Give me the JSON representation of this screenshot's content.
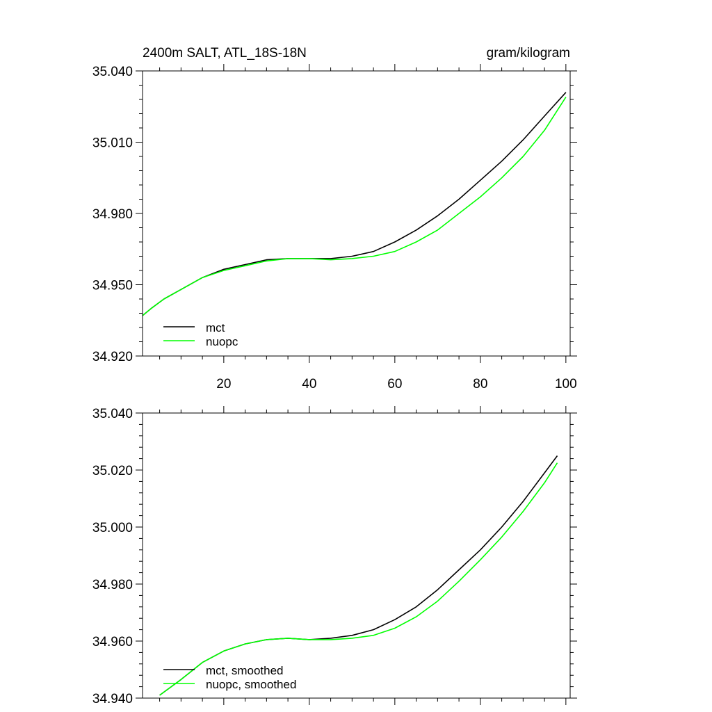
{
  "chart_data": [
    {
      "type": "line",
      "title": "2400m SALT, ATL_18S-18N",
      "units": "gram/kilogram",
      "xlim": [
        1,
        101
      ],
      "ylim": [
        34.92,
        35.04
      ],
      "xticks": [
        20,
        40,
        60,
        80,
        100
      ],
      "yticks": [
        34.92,
        34.95,
        34.98,
        35.01,
        35.04
      ],
      "ytick_labels": [
        "34.920",
        "34.950",
        "34.980",
        "35.010",
        "35.040"
      ],
      "xtick_labels": [
        "20",
        "40",
        "60",
        "80",
        "100"
      ],
      "legend_position": "bottom-left",
      "series": [
        {
          "name": "mct",
          "color": "#000000",
          "x": [
            1,
            3,
            6,
            10,
            15,
            20,
            25,
            30,
            35,
            40,
            45,
            50,
            55,
            60,
            65,
            70,
            75,
            80,
            85,
            90,
            95,
            100
          ],
          "y": [
            34.937,
            34.94,
            34.944,
            34.948,
            34.953,
            34.9565,
            34.9585,
            34.9605,
            34.961,
            34.961,
            34.961,
            34.962,
            34.964,
            34.968,
            34.973,
            34.979,
            34.986,
            34.994,
            35.002,
            35.011,
            35.021,
            35.031
          ]
        },
        {
          "name": "nuopc",
          "color": "#00ff00",
          "x": [
            1,
            3,
            6,
            10,
            15,
            20,
            25,
            30,
            35,
            40,
            45,
            50,
            55,
            60,
            65,
            70,
            75,
            80,
            85,
            90,
            95,
            100
          ],
          "y": [
            34.937,
            34.94,
            34.944,
            34.948,
            34.953,
            34.956,
            34.958,
            34.96,
            34.961,
            34.961,
            34.9605,
            34.961,
            34.962,
            34.964,
            34.968,
            34.973,
            34.98,
            34.987,
            34.995,
            35.004,
            35.015,
            35.029
          ]
        }
      ]
    },
    {
      "type": "line",
      "title": "",
      "xlim": [
        1,
        101
      ],
      "ylim": [
        34.94,
        35.04
      ],
      "xticks": [
        20,
        40,
        60,
        80,
        100
      ],
      "yticks": [
        34.94,
        34.96,
        34.98,
        35.0,
        35.02,
        35.04
      ],
      "ytick_labels": [
        "34.940",
        "34.960",
        "34.980",
        "35.000",
        "35.020",
        "35.040"
      ],
      "legend_position": "bottom-left",
      "series": [
        {
          "name": "mct, smoothed",
          "color": "#000000",
          "x": [
            5,
            10,
            15,
            20,
            25,
            30,
            35,
            40,
            45,
            50,
            55,
            60,
            65,
            70,
            75,
            80,
            85,
            90,
            95,
            98
          ],
          "y": [
            34.941,
            34.9465,
            34.9525,
            34.9565,
            34.959,
            34.9605,
            34.961,
            34.9605,
            34.961,
            34.962,
            34.964,
            34.9675,
            34.972,
            34.978,
            34.985,
            34.992,
            35.0,
            35.009,
            35.019,
            35.025
          ]
        },
        {
          "name": "nuopc, smoothed",
          "color": "#00ff00",
          "x": [
            5,
            10,
            15,
            20,
            25,
            30,
            35,
            40,
            45,
            50,
            55,
            60,
            65,
            70,
            75,
            80,
            85,
            90,
            95,
            98
          ],
          "y": [
            34.941,
            34.9465,
            34.9525,
            34.9565,
            34.959,
            34.9605,
            34.961,
            34.9605,
            34.9605,
            34.961,
            34.962,
            34.9645,
            34.9685,
            34.974,
            34.981,
            34.9885,
            34.9965,
            35.0055,
            35.0155,
            35.0225
          ]
        }
      ]
    }
  ]
}
